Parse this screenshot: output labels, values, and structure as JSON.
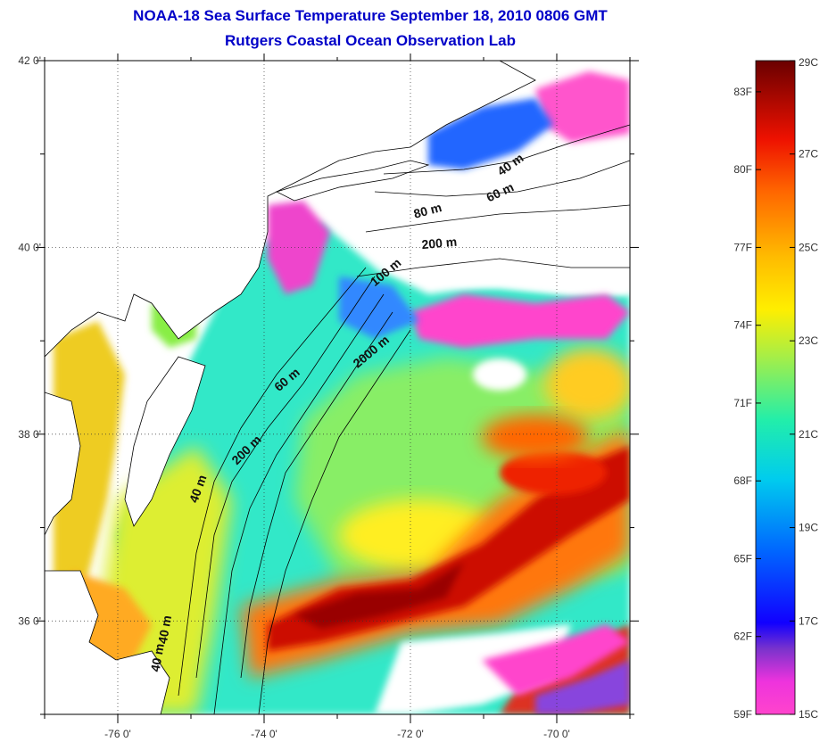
{
  "title": {
    "line1": "NOAA-18 Sea Surface Temperature September 18, 2010 0806 GMT",
    "line2": "Rutgers Coastal Ocean Observation Lab"
  },
  "map": {
    "lon_range": [
      -77,
      -69
    ],
    "lat_range": [
      35,
      42
    ],
    "lon_ticks": [
      {
        "value": -76,
        "label": "-76 0'"
      },
      {
        "value": -74,
        "label": "-74 0'"
      },
      {
        "value": -72,
        "label": "-72 0'"
      },
      {
        "value": -70,
        "label": "-70 0'"
      }
    ],
    "lat_ticks": [
      {
        "value": 42,
        "label": "42 0'"
      },
      {
        "value": 40,
        "label": "40 0'"
      },
      {
        "value": 38,
        "label": "38 0'"
      },
      {
        "value": 36,
        "label": "36 0'"
      }
    ],
    "grid": "dotted",
    "contour_labels": [
      {
        "text": "40 m",
        "lon": -70.6,
        "lat": 40.85,
        "rotate": -35
      },
      {
        "text": "60 m",
        "lon": -70.75,
        "lat": 40.55,
        "rotate": -25
      },
      {
        "text": "80 m",
        "lon": -71.75,
        "lat": 40.35,
        "rotate": -15
      },
      {
        "text": "200 m",
        "lon": -71.6,
        "lat": 40.0,
        "rotate": -5
      },
      {
        "text": "100 m",
        "lon": -72.3,
        "lat": 39.7,
        "rotate": -40
      },
      {
        "text": "2000 m",
        "lon": -72.5,
        "lat": 38.85,
        "rotate": -40
      },
      {
        "text": "60 m",
        "lon": -73.65,
        "lat": 38.55,
        "rotate": -40
      },
      {
        "text": "200 m",
        "lon": -74.2,
        "lat": 37.8,
        "rotate": -45
      },
      {
        "text": "40 m",
        "lon": -74.85,
        "lat": 37.4,
        "rotate": -70
      },
      {
        "text": "40 m",
        "lon": -75.4,
        "lat": 35.6,
        "rotate": -80
      },
      {
        "text": "40 m",
        "lon": -75.3,
        "lat": 35.9,
        "rotate": -80
      }
    ]
  },
  "colorbar": {
    "celsius_range": [
      15,
      29
    ],
    "fahrenheit_range": [
      59,
      84.2
    ],
    "celsius_ticks": [
      {
        "value": 29,
        "label": "29C"
      },
      {
        "value": 27,
        "label": "27C"
      },
      {
        "value": 25,
        "label": "25C"
      },
      {
        "value": 23,
        "label": "23C"
      },
      {
        "value": 21,
        "label": "21C"
      },
      {
        "value": 19,
        "label": "19C"
      },
      {
        "value": 17,
        "label": "17C"
      },
      {
        "value": 15,
        "label": "15C"
      }
    ],
    "fahrenheit_ticks": [
      {
        "value": 83,
        "label": "83F"
      },
      {
        "value": 80,
        "label": "80F"
      },
      {
        "value": 77,
        "label": "77F"
      },
      {
        "value": 74,
        "label": "74F"
      },
      {
        "value": 71,
        "label": "71F"
      },
      {
        "value": 68,
        "label": "68F"
      },
      {
        "value": 65,
        "label": "65F"
      },
      {
        "value": 62,
        "label": "62F"
      },
      {
        "value": 59,
        "label": "59F"
      }
    ],
    "colors": [
      "#ff44cc",
      "#9a44cc",
      "#3300cc",
      "#0033ff",
      "#00ccee",
      "#33ee99",
      "#ccee33",
      "#ffee00",
      "#ffbb00",
      "#ff6600",
      "#dd1100",
      "#aa0000",
      "#660000"
    ]
  }
}
